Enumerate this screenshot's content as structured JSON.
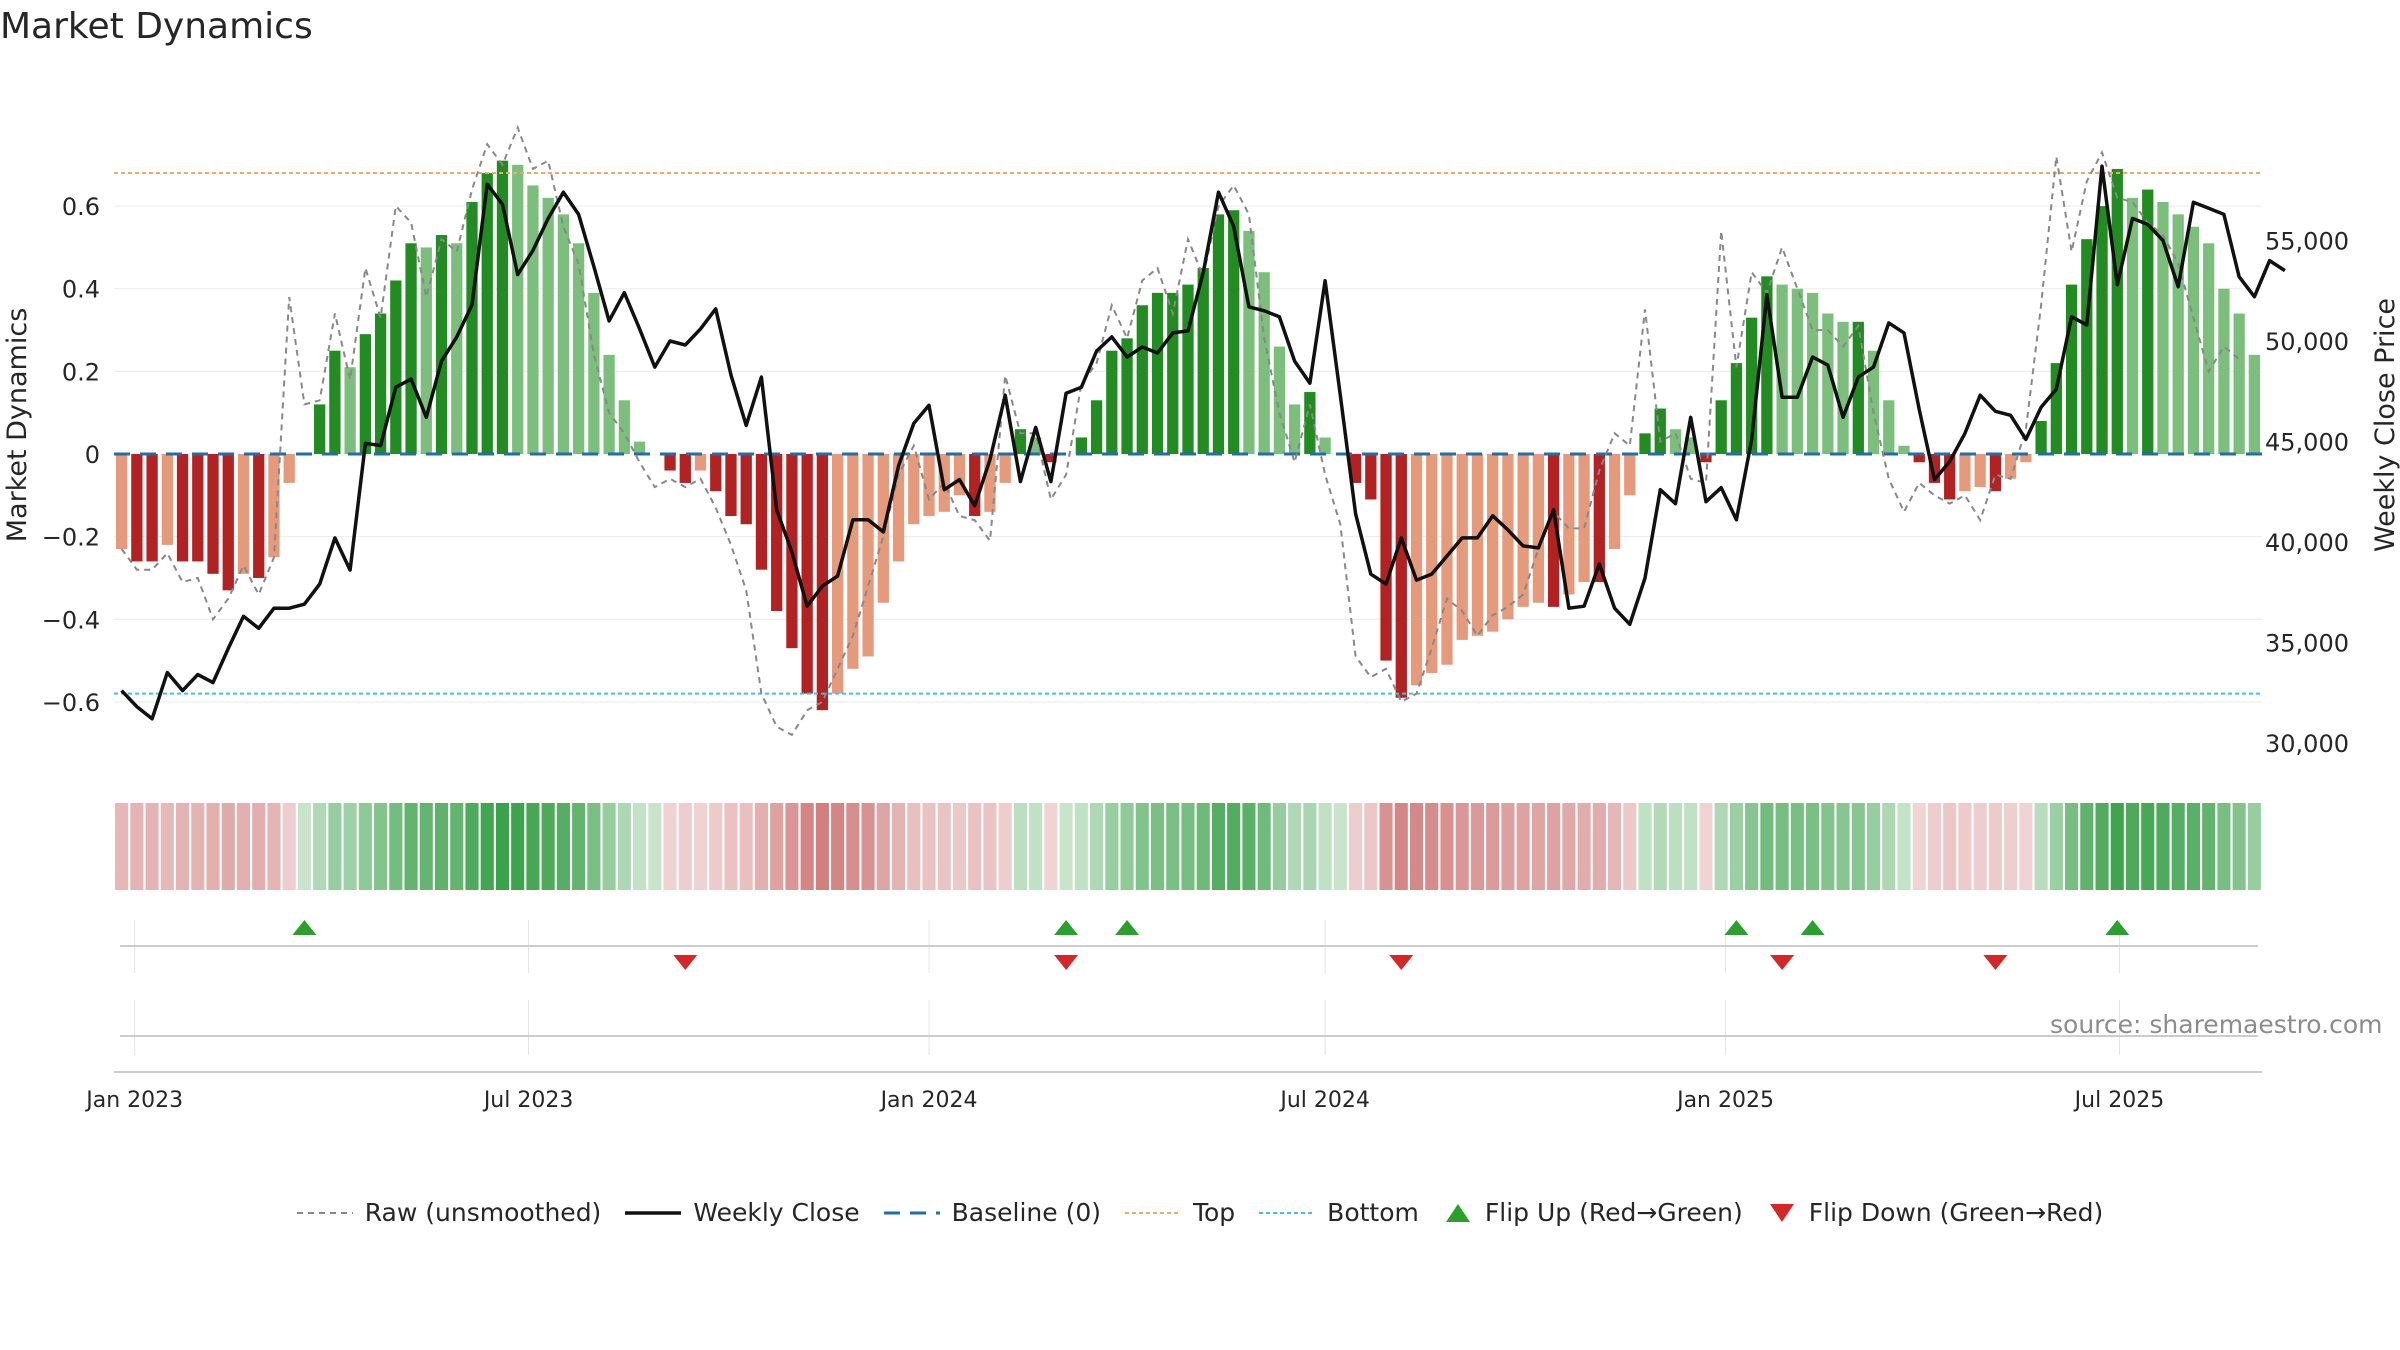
{
  "title": "Market Dynamics",
  "source_note": "source: sharemaestro.com",
  "colors": {
    "strong_green": "#228B22",
    "light_green": "#7CBF7C",
    "strong_red": "#B22222",
    "light_red": "#E59A7C",
    "close_line": "#111111",
    "raw_line": "#888888",
    "baseline": "#1f6fa8",
    "top": "#f0a868",
    "bottom": "#3ec6d6",
    "flip_up": "#2ca02c",
    "flip_down": "#d62728"
  },
  "legend": {
    "raw": "Raw (unsmoothed)",
    "close": "Weekly Close",
    "baseline": "Baseline (0)",
    "top": "Top",
    "bottom": "Bottom",
    "flip_up": "Flip Up (Red→Green)",
    "flip_down": "Flip Down (Green→Red)"
  },
  "chart_data": {
    "type": "bar",
    "start_date": "2022-12-26",
    "ylabel": "Market Dynamics",
    "y2label": "Weekly Close Price",
    "ylim": [
      -0.76,
      0.76
    ],
    "y2lim": [
      28750,
      60000
    ],
    "yticks": [
      {
        "v": 0.6,
        "label": "0.6"
      },
      {
        "v": 0.4,
        "label": "0.4"
      },
      {
        "v": 0.2,
        "label": "0.2"
      },
      {
        "v": 0,
        "label": "0"
      },
      {
        "v": -0.2,
        "label": "−0.2"
      },
      {
        "v": -0.4,
        "label": "−0.4"
      },
      {
        "v": -0.6,
        "label": "−0.6"
      }
    ],
    "y2ticks": [
      {
        "v": 55000,
        "label": "55,000"
      },
      {
        "v": 50000,
        "label": "50,000"
      },
      {
        "v": 45000,
        "label": "45,000"
      },
      {
        "v": 40000,
        "label": "40,000"
      },
      {
        "v": 35000,
        "label": "35,000"
      },
      {
        "v": 30000,
        "label": "30,000"
      }
    ],
    "xticks": [
      {
        "date": "2023-01-01",
        "label": "Jan 2023"
      },
      {
        "date": "2023-07-01",
        "label": "Jul 2023"
      },
      {
        "date": "2024-01-01",
        "label": "Jan 2024"
      },
      {
        "date": "2024-07-01",
        "label": "Jul 2024"
      },
      {
        "date": "2025-01-01",
        "label": "Jan 2025"
      },
      {
        "date": "2025-07-01",
        "label": "Jul 2025"
      }
    ],
    "top_level": 0.68,
    "bottom_level": -0.58,
    "baseline": 0,
    "dynamics": [
      -0.23,
      -0.26,
      -0.26,
      -0.22,
      -0.26,
      -0.26,
      -0.29,
      -0.33,
      -0.29,
      -0.3,
      -0.25,
      -0.07,
      0,
      0.12,
      0.25,
      0.21,
      0.29,
      0.34,
      0.42,
      0.51,
      0.5,
      0.53,
      0.51,
      0.61,
      0.68,
      0.71,
      0.7,
      0.65,
      0.62,
      0.58,
      0.51,
      0.39,
      0.24,
      0.13,
      0.03,
      0,
      -0.04,
      -0.07,
      -0.04,
      -0.09,
      -0.15,
      -0.17,
      -0.28,
      -0.38,
      -0.47,
      -0.58,
      -0.62,
      -0.58,
      -0.52,
      -0.49,
      -0.36,
      -0.26,
      -0.17,
      -0.15,
      -0.14,
      -0.1,
      -0.15,
      -0.14,
      -0.07,
      0.06,
      0.04,
      -0.02,
      0,
      0.04,
      0.13,
      0.25,
      0.28,
      0.36,
      0.39,
      0.39,
      0.41,
      0.45,
      0.58,
      0.59,
      0.54,
      0.44,
      0.26,
      0.12,
      0.15,
      0.04,
      0,
      -0.07,
      -0.11,
      -0.5,
      -0.59,
      -0.56,
      -0.53,
      -0.51,
      -0.45,
      -0.44,
      -0.43,
      -0.4,
      -0.37,
      -0.36,
      -0.37,
      -0.34,
      -0.31,
      -0.31,
      -0.23,
      -0.1,
      0.05,
      0.11,
      0.06,
      0.04,
      -0.02,
      0.13,
      0.22,
      0.33,
      0.43,
      0.41,
      0.4,
      0.39,
      0.34,
      0.32,
      0.32,
      0.25,
      0.13,
      0.02,
      -0.02,
      -0.07,
      -0.11,
      -0.09,
      -0.08,
      -0.09,
      -0.06,
      -0.02,
      0.08,
      0.22,
      0.41,
      0.52,
      0.6,
      0.69,
      0.62,
      0.64,
      0.61,
      0.58,
      0.55,
      0.51,
      0.4,
      0.34,
      0.24
    ],
    "raw": [
      -0.23,
      -0.28,
      -0.28,
      -0.24,
      -0.31,
      -0.3,
      -0.4,
      -0.35,
      -0.27,
      -0.34,
      -0.25,
      0.38,
      0.12,
      0.13,
      0.34,
      0.18,
      0.45,
      0.33,
      0.6,
      0.56,
      0.38,
      0.52,
      0.49,
      0.64,
      0.75,
      0.7,
      0.79,
      0.69,
      0.71,
      0.55,
      0.46,
      0.24,
      0.1,
      0.05,
      -0.02,
      -0.08,
      -0.06,
      -0.08,
      -0.06,
      -0.13,
      -0.22,
      -0.33,
      -0.58,
      -0.66,
      -0.68,
      -0.62,
      -0.6,
      -0.52,
      -0.44,
      -0.32,
      -0.2,
      -0.05,
      0.02,
      -0.11,
      -0.07,
      -0.15,
      -0.16,
      -0.21,
      0.19,
      0.05,
      0.05,
      -0.11,
      -0.05,
      0.17,
      0.22,
      0.36,
      0.28,
      0.42,
      0.45,
      0.34,
      0.52,
      0.43,
      0.6,
      0.65,
      0.58,
      0.28,
      0.1,
      -0.02,
      0.12,
      -0.05,
      -0.17,
      -0.49,
      -0.54,
      -0.52,
      -0.6,
      -0.58,
      -0.47,
      -0.35,
      -0.38,
      -0.44,
      -0.39,
      -0.37,
      -0.34,
      -0.23,
      -0.14,
      -0.18,
      -0.18,
      -0.04,
      0.05,
      0.02,
      0.35,
      0.03,
      0.05,
      -0.06,
      -0.07,
      0.54,
      0.21,
      0.44,
      0.39,
      0.5,
      0.4,
      0.3,
      0.3,
      0.26,
      0.31,
      0.1,
      -0.06,
      -0.14,
      -0.07,
      -0.1,
      -0.12,
      -0.1,
      -0.16,
      -0.05,
      -0.06,
      0.06,
      0.36,
      0.72,
      0.49,
      0.66,
      0.73,
      0.62,
      0.61,
      0.56,
      0.53,
      0.46,
      0.33,
      0.2,
      0.26,
      0.23
    ],
    "close": [
      32600,
      31800,
      31200,
      33500,
      32600,
      33400,
      33000,
      34700,
      36300,
      35700,
      36700,
      36700,
      36900,
      37900,
      40200,
      38600,
      44900,
      44800,
      47700,
      48100,
      46200,
      49000,
      50200,
      51800,
      57800,
      56800,
      53300,
      54500,
      56100,
      57400,
      56300,
      53700,
      51000,
      52400,
      50600,
      48700,
      50000,
      49800,
      50600,
      51600,
      48300,
      45800,
      48200,
      41600,
      39500,
      36800,
      37800,
      38300,
      41100,
      41100,
      40500,
      43800,
      45900,
      46800,
      42600,
      43100,
      41800,
      44100,
      47300,
      43000,
      45700,
      43000,
      47400,
      47700,
      49500,
      50200,
      49200,
      49700,
      49400,
      50400,
      50500,
      53400,
      57400,
      55700,
      51700,
      51500,
      51200,
      49000,
      47900,
      53000,
      47300,
      41400,
      38400,
      37900,
      40200,
      38100,
      38400,
      39300,
      40200,
      40200,
      41300,
      40600,
      39800,
      39700,
      41600,
      36700,
      36800,
      38900,
      36700,
      35900,
      38200,
      42600,
      41900,
      46200,
      42000,
      42700,
      41100,
      45100,
      52300,
      47200,
      47200,
      49200,
      48800,
      46200,
      48200,
      48700,
      50900,
      50400,
      46600,
      43100,
      44000,
      45400,
      47300,
      46500,
      46300,
      45100,
      46700,
      47600,
      51200,
      50800,
      58700,
      52800,
      56100,
      55800,
      55000,
      52700,
      56900,
      56600,
      56300,
      53200,
      52200,
      54000,
      53500
    ],
    "flip_up_weeks": [
      12,
      62,
      66,
      106,
      111,
      131
    ],
    "flip_down_weeks": [
      37,
      62,
      84,
      109,
      123
    ]
  }
}
